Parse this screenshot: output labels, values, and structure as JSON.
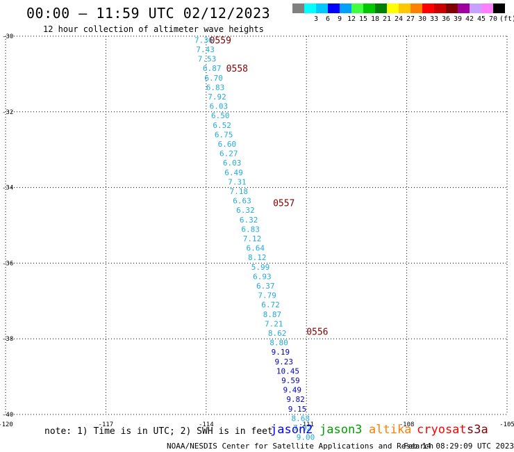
{
  "header": {
    "title": "00:00 – 11:59 UTC 02/12/2023",
    "subtitle": "12 hour collection of altimeter wave heights"
  },
  "legend": {
    "unit": "(ft)",
    "bins": [
      {
        "label": "",
        "color": "#808080"
      },
      {
        "label": "3",
        "color": "#00ffff"
      },
      {
        "label": "6",
        "color": "#00c8ff"
      },
      {
        "label": "9",
        "color": "#0000ff"
      },
      {
        "label": "12",
        "color": "#00a0ff"
      },
      {
        "label": "15",
        "color": "#40ff40"
      },
      {
        "label": "18",
        "color": "#00c800"
      },
      {
        "label": "21",
        "color": "#008000"
      },
      {
        "label": "24",
        "color": "#ffff00"
      },
      {
        "label": "27",
        "color": "#ffc800"
      },
      {
        "label": "30",
        "color": "#ff8000"
      },
      {
        "label": "33",
        "color": "#ff0000"
      },
      {
        "label": "36",
        "color": "#c80000"
      },
      {
        "label": "39",
        "color": "#800000"
      },
      {
        "label": "42",
        "color": "#a000a0"
      },
      {
        "label": "45",
        "color": "#c8a0ff"
      },
      {
        "label": "70",
        "color": "#ff80ff"
      },
      {
        "label": "",
        "color": "#000000"
      }
    ]
  },
  "axes": {
    "lat_ticks": [
      "-30",
      "-32",
      "-34",
      "-36",
      "-38",
      "-40"
    ],
    "lon_ticks": [
      "-120",
      "-117",
      "-114",
      "-111",
      "-108",
      "-105"
    ],
    "grid": "dotted"
  },
  "chart_data": {
    "type": "scatter",
    "xlabel": "",
    "ylabel": "",
    "xlim": [
      -120,
      -105
    ],
    "ylim": [
      -40,
      -30
    ],
    "track_colors": {
      "light": "#22aadd",
      "dark": "#0000cc",
      "time": "#800000"
    },
    "time_labels": [
      {
        "text": "0559",
        "lon": -113.9,
        "lat": -30.1
      },
      {
        "text": "0558",
        "lon": -113.4,
        "lat": -30.85
      },
      {
        "text": "0557",
        "lon": -112.0,
        "lat": -34.4
      },
      {
        "text": "0556",
        "lon": -111.0,
        "lat": -37.8
      }
    ],
    "observations": [
      {
        "v": "7.36",
        "lon": -114.35,
        "lat": -30.1,
        "c": "light"
      },
      {
        "v": "7.43",
        "lon": -114.3,
        "lat": -30.35,
        "c": "light"
      },
      {
        "v": "7.53",
        "lon": -114.25,
        "lat": -30.6,
        "c": "light"
      },
      {
        "v": "6.87",
        "lon": -114.1,
        "lat": -30.85,
        "c": "light"
      },
      {
        "v": "6.70",
        "lon": -114.05,
        "lat": -31.1,
        "c": "light"
      },
      {
        "v": "6.83",
        "lon": -114.0,
        "lat": -31.35,
        "c": "light"
      },
      {
        "v": "7.92",
        "lon": -113.95,
        "lat": -31.6,
        "c": "light"
      },
      {
        "v": "6.03",
        "lon": -113.9,
        "lat": -31.85,
        "c": "light"
      },
      {
        "v": "6.50",
        "lon": -113.85,
        "lat": -32.1,
        "c": "light"
      },
      {
        "v": "6.52",
        "lon": -113.8,
        "lat": -32.35,
        "c": "light"
      },
      {
        "v": "6.75",
        "lon": -113.75,
        "lat": -32.6,
        "c": "light"
      },
      {
        "v": "6.60",
        "lon": -113.65,
        "lat": -32.85,
        "c": "light"
      },
      {
        "v": "6.27",
        "lon": -113.6,
        "lat": -33.1,
        "c": "light"
      },
      {
        "v": "6.03",
        "lon": -113.5,
        "lat": -33.35,
        "c": "light"
      },
      {
        "v": "6.49",
        "lon": -113.45,
        "lat": -33.6,
        "c": "light"
      },
      {
        "v": "7.31",
        "lon": -113.35,
        "lat": -33.85,
        "c": "light"
      },
      {
        "v": "7.18",
        "lon": -113.3,
        "lat": -34.1,
        "c": "light"
      },
      {
        "v": "6.63",
        "lon": -113.2,
        "lat": -34.35,
        "c": "light"
      },
      {
        "v": "6.32",
        "lon": -113.1,
        "lat": -34.6,
        "c": "light"
      },
      {
        "v": "6.32",
        "lon": -113.0,
        "lat": -34.85,
        "c": "light"
      },
      {
        "v": "6.83",
        "lon": -112.95,
        "lat": -35.1,
        "c": "light"
      },
      {
        "v": "7.12",
        "lon": -112.9,
        "lat": -35.35,
        "c": "light"
      },
      {
        "v": "6.64",
        "lon": -112.8,
        "lat": -35.6,
        "c": "light"
      },
      {
        "v": "8.12",
        "lon": -112.75,
        "lat": -35.85,
        "c": "light"
      },
      {
        "v": "5.99",
        "lon": -112.65,
        "lat": -36.1,
        "c": "light"
      },
      {
        "v": "6.93",
        "lon": -112.6,
        "lat": -36.35,
        "c": "light"
      },
      {
        "v": "6.37",
        "lon": -112.5,
        "lat": -36.6,
        "c": "light"
      },
      {
        "v": "7.79",
        "lon": -112.45,
        "lat": -36.85,
        "c": "light"
      },
      {
        "v": "6.72",
        "lon": -112.35,
        "lat": -37.1,
        "c": "light"
      },
      {
        "v": "8.87",
        "lon": -112.3,
        "lat": -37.35,
        "c": "light"
      },
      {
        "v": "7.21",
        "lon": -112.25,
        "lat": -37.6,
        "c": "light"
      },
      {
        "v": "8.62",
        "lon": -112.15,
        "lat": -37.85,
        "c": "light"
      },
      {
        "v": "8.80",
        "lon": -112.1,
        "lat": -38.1,
        "c": "light"
      },
      {
        "v": "9.19",
        "lon": -112.05,
        "lat": -38.35,
        "c": "dark"
      },
      {
        "v": "9.23",
        "lon": -111.95,
        "lat": -38.6,
        "c": "dark"
      },
      {
        "v": "10.45",
        "lon": -111.9,
        "lat": -38.85,
        "c": "dark"
      },
      {
        "v": "9.59",
        "lon": -111.75,
        "lat": -39.1,
        "c": "dark"
      },
      {
        "v": "9.49",
        "lon": -111.7,
        "lat": -39.35,
        "c": "dark"
      },
      {
        "v": "9.82",
        "lon": -111.6,
        "lat": -39.6,
        "c": "dark"
      },
      {
        "v": "9.15",
        "lon": -111.55,
        "lat": -39.85,
        "c": "dark"
      },
      {
        "v": "8.68",
        "lon": -111.45,
        "lat": -40.1,
        "c": "light"
      },
      {
        "v": "7.92",
        "lon": -111.4,
        "lat": -40.35,
        "c": "light"
      },
      {
        "v": "9.00",
        "lon": -111.3,
        "lat": -40.6,
        "c": "light"
      }
    ]
  },
  "footer": {
    "note": "note: 1) Time is in UTC; 2) SWH is in feet",
    "satellites": [
      {
        "name": "jason2",
        "color": "#0000ff"
      },
      {
        "name": "jason3",
        "color": "#00a000"
      },
      {
        "name": "altika",
        "color": "#ff8000"
      },
      {
        "name": "cryosat",
        "color": "#ff0000"
      },
      {
        "name": "s3a",
        "color": "#800000"
      }
    ],
    "credit": "NOAA/NESDIS Center for Satellite Applications and Research",
    "generated": "Feb 14 08:29:09 UTC 2023"
  }
}
